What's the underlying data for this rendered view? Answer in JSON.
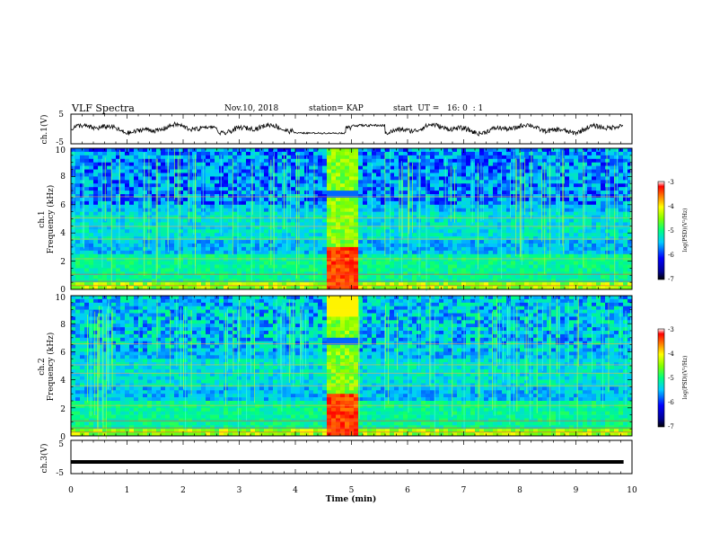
{
  "header": {
    "title": "VLF Spectra",
    "date": "Nov.10, 2018",
    "station": "station= KAP",
    "start": "start  UT =   16: 0  : 1"
  },
  "chart_data": {
    "type": "heatmap",
    "xlabel": "Time  (min)",
    "xlim": [
      0,
      10
    ],
    "x_ticks": [
      "0",
      "1",
      "2",
      "3",
      "4",
      "5",
      "6",
      "7",
      "8",
      "9",
      "10"
    ],
    "panels": {
      "ch1_wave": {
        "type": "line",
        "ylabel": "ch.1(V)",
        "ylim": [
          -5,
          5
        ],
        "y_ticks": [
          "5",
          "-5"
        ]
      },
      "ch1_spec": {
        "type": "heatmap",
        "ylabel_top": "ch.1",
        "ylabel": "Frequency  (kHz)",
        "ylim": [
          0,
          10
        ],
        "y_ticks": [
          "0",
          "2",
          "4",
          "6",
          "8",
          "10"
        ],
        "colorbar": {
          "label": "log(PSD)(V²/Hz)",
          "range": [
            -7,
            -3
          ],
          "ticks": [
            "-3",
            "-4",
            "-5",
            "-6",
            "-7"
          ]
        }
      },
      "ch2_spec": {
        "type": "heatmap",
        "ylabel_top": "ch.2",
        "ylabel": "Frequency  (kHz)",
        "ylim": [
          0,
          10
        ],
        "y_ticks": [
          "0",
          "2",
          "4",
          "6",
          "8",
          "10"
        ],
        "colorbar": {
          "label": "log(PSD)(V²/Hz)",
          "range": [
            -7,
            -3
          ],
          "ticks": [
            "-3",
            "-4",
            "-5",
            "-6",
            "-7"
          ]
        }
      },
      "ch3_wave": {
        "type": "line",
        "ylabel": "ch.3(V)",
        "ylim": [
          -5,
          5
        ],
        "y_ticks": [
          "5",
          "-5"
        ],
        "level": -1.5
      }
    },
    "events": {
      "burst_min": [
        4.6,
        5.1
      ]
    },
    "colors": {
      "spec_low": "#000080",
      "spec_high": "#ff0000",
      "trace": "#000000"
    }
  }
}
